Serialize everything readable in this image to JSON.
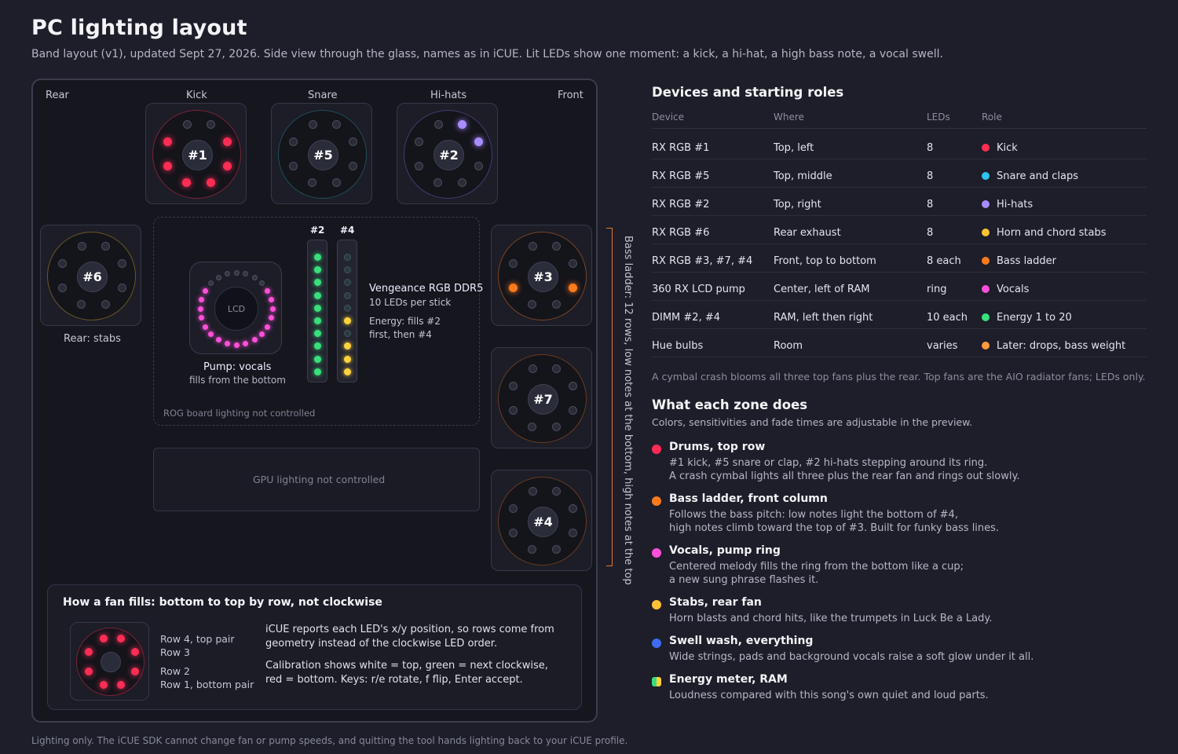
{
  "header": {
    "title": "PC lighting layout",
    "subtitle": "Band layout (v1), updated Sept 27, 2026. Side view through the glass, names as in iCUE. Lit LEDs show one moment: a kick, a hi-hat, a high bass note, a vocal swell."
  },
  "case": {
    "rear_label": "Rear",
    "front_label": "Front",
    "top_labels": [
      "Kick",
      "Snare",
      "Hi-hats"
    ],
    "fans": {
      "f1": "#1",
      "f5": "#5",
      "f2": "#2",
      "f6": "#6",
      "f3": "#3",
      "f7": "#7",
      "f4": "#4"
    },
    "rear_caption": "Rear: stabs",
    "pump": {
      "lcd": "LCD",
      "caption": "Pump: vocals",
      "subcaption": "fills from the bottom"
    },
    "ram": {
      "stick_a": "#2",
      "stick_b": "#4",
      "title": "Vengeance RGB DDR5",
      "leds": "10 LEDs per stick",
      "energy_1": "Energy: fills #2",
      "energy_2": "first, then #4"
    },
    "mobo_note": "ROG board lighting not controlled",
    "gpu_note": "GPU lighting not controlled",
    "bass_ladder_note": "Bass ladder: 12 rows, low notes at the bottom, high notes at the top"
  },
  "fill_panel": {
    "title": "How a fan fills: bottom to top by row, not clockwise",
    "rows": [
      "Row 4, top pair",
      "Row 3",
      "Row 2",
      "Row 1, bottom pair"
    ],
    "text_1a": "iCUE reports each LED's x/y position, so rows come from",
    "text_1b": "geometry instead of the clockwise LED order.",
    "text_2a": "Calibration shows white = top, green = next clockwise,",
    "text_2b": "red = bottom. Keys: r/e rotate, f flip, Enter accept."
  },
  "devices": {
    "title": "Devices and starting roles",
    "headers": [
      "Device",
      "Where",
      "LEDs",
      "Role"
    ],
    "rows": [
      {
        "device": "RX RGB #1",
        "where": "Top, left",
        "leds": "8",
        "role": "Kick",
        "color": "#ff2d55"
      },
      {
        "device": "RX RGB #5",
        "where": "Top, middle",
        "leds": "8",
        "role": "Snare and claps",
        "color": "#2ec4f1"
      },
      {
        "device": "RX RGB #2",
        "where": "Top, right",
        "leds": "8",
        "role": "Hi-hats",
        "color": "#a98cff"
      },
      {
        "device": "RX RGB #6",
        "where": "Rear exhaust",
        "leds": "8",
        "role": "Horn and chord stabs",
        "color": "#ffc233"
      },
      {
        "device": "RX RGB #3, #7, #4",
        "where": "Front, top to bottom",
        "leds": "8 each",
        "role": "Bass ladder",
        "color": "#ff7a1a"
      },
      {
        "device": "360 RX LCD pump",
        "where": "Center, left of RAM",
        "leds": "ring",
        "role": "Vocals",
        "color": "#ff4fd8"
      },
      {
        "device": "DIMM #2, #4",
        "where": "RAM, left then right",
        "leds": "10 each",
        "role": "Energy 1 to 20",
        "color": "#38e07b"
      },
      {
        "device": "Hue bulbs",
        "where": "Room",
        "leds": "varies",
        "role": "Later: drops, bass weight",
        "color": "#ff9a3c"
      }
    ],
    "note": "A cymbal crash blooms all three top fans plus the rear. Top fans are the AIO radiator fans; LEDs only."
  },
  "zones": {
    "title": "What each zone does",
    "subtitle": "Colors, sensitivities and fade times are adjustable in the preview.",
    "items": [
      {
        "title": "Drums, top row",
        "line1": "#1 kick, #5 snare or clap, #2 hi-hats stepping around its ring.",
        "line2": "A crash cymbal lights all three plus the rear fan and rings out slowly.",
        "color": "#ff2d55"
      },
      {
        "title": "Bass ladder, front column",
        "line1": "Follows the bass pitch: low notes light the bottom of #4,",
        "line2": "high notes climb toward the top of #3. Built for funky bass lines.",
        "color": "#ff7a1a"
      },
      {
        "title": "Vocals, pump ring",
        "line1": "Centered melody fills the ring from the bottom like a cup;",
        "line2": "a new sung phrase flashes it.",
        "color": "#ff4fd8"
      },
      {
        "title": "Stabs, rear fan",
        "line1": "Horn blasts and chord hits, like the trumpets in Luck Be a Lady.",
        "line2": "",
        "color": "#ffc233"
      },
      {
        "title": "Swell wash, everything",
        "line1": "Wide strings, pads and background vocals raise a soft glow under it all.",
        "line2": "",
        "color": "#3d6cf5"
      },
      {
        "title": "Energy meter, RAM",
        "line1": "Loudness compared with this song's own quiet and loud parts.",
        "line2": "",
        "color": "#38e07b"
      }
    ]
  },
  "footer": "Lighting only. The iCUE SDK cannot change fan or pump speeds, and quitting the tool hands lighting back to your iCUE profile."
}
